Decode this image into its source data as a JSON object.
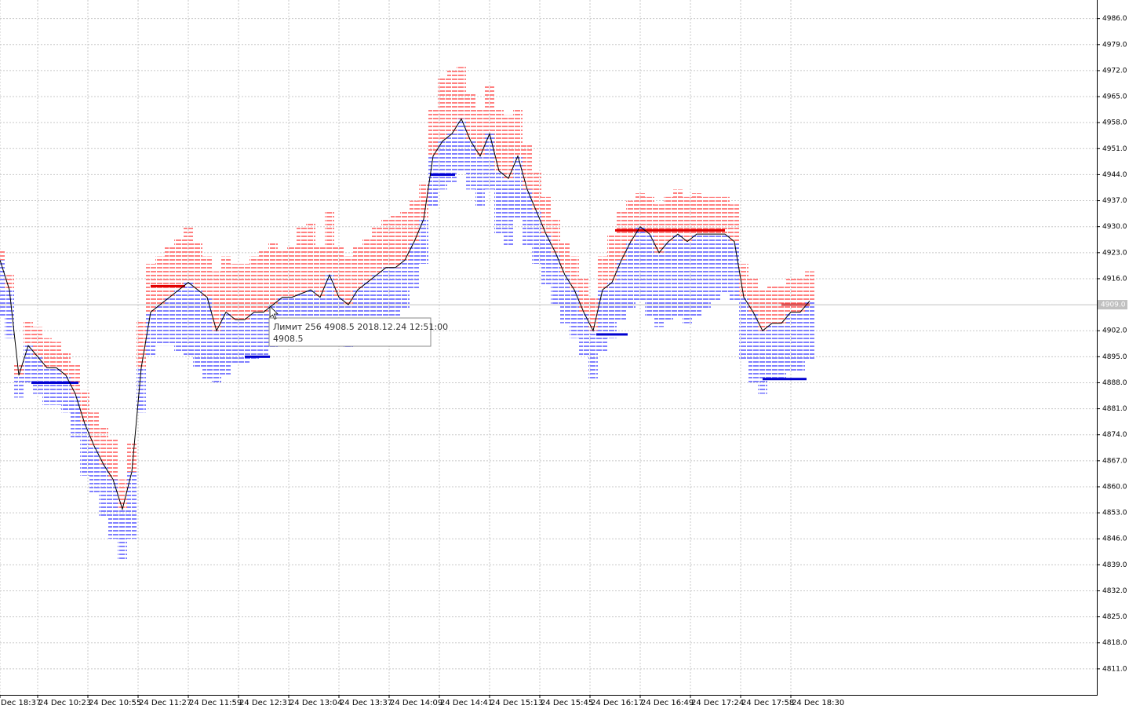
{
  "chart_data": {
    "type": "orderbook",
    "xlim": [
      0,
      349.5
    ],
    "ylim": [
      4804,
      4991
    ],
    "grid": true,
    "xticks": [
      {
        "value": 0,
        "label": "Dec 18:37"
      },
      {
        "value": 12,
        "label": "24 Dec 10:23"
      },
      {
        "value": 28,
        "label": "24 Dec 10:55"
      },
      {
        "value": 44,
        "label": "24 Dec 11:27"
      },
      {
        "value": 60,
        "label": "24 Dec 11:59"
      },
      {
        "value": 76,
        "label": "24 Dec 12:31"
      },
      {
        "value": 92,
        "label": "24 Dec 13:04"
      },
      {
        "value": 108,
        "label": "24 Dec 13:37"
      },
      {
        "value": 124,
        "label": "24 Dec 14:09"
      },
      {
        "value": 140,
        "label": "24 Dec 14:41"
      },
      {
        "value": 156,
        "label": "24 Dec 15:13"
      },
      {
        "value": 172,
        "label": "24 Dec 15:45"
      },
      {
        "value": 188,
        "label": "24 Dec 16:17"
      },
      {
        "value": 204,
        "label": "24 Dec 16:49"
      },
      {
        "value": 220,
        "label": "24 Dec 17:24"
      },
      {
        "value": 236,
        "label": "24 Dec 17:58"
      },
      {
        "value": 252,
        "label": "24 Dec 18:30"
      }
    ],
    "yticks": [
      {
        "value": 4986,
        "label": "4986.0"
      },
      {
        "value": 4979,
        "label": "4979.0"
      },
      {
        "value": 4972,
        "label": "4972.0"
      },
      {
        "value": 4965,
        "label": "4965.0"
      },
      {
        "value": 4958,
        "label": "4958.0"
      },
      {
        "value": 4951,
        "label": "4951.0"
      },
      {
        "value": 4944,
        "label": "4944.0"
      },
      {
        "value": 4937,
        "label": "4937.0"
      },
      {
        "value": 4930,
        "label": "4930.0"
      },
      {
        "value": 4923,
        "label": "4923.0"
      },
      {
        "value": 4916,
        "label": "4916.0"
      },
      {
        "value": 4902,
        "label": "4902.0"
      },
      {
        "value": 4895,
        "label": "4895.0"
      },
      {
        "value": 4888,
        "label": "4888.0"
      },
      {
        "value": 4881,
        "label": "4881.0"
      },
      {
        "value": 4874,
        "label": "4874.0"
      },
      {
        "value": 4867,
        "label": "4867.0"
      },
      {
        "value": 4860,
        "label": "4860.0"
      },
      {
        "value": 4853,
        "label": "4853.0"
      },
      {
        "value": 4846,
        "label": "4846.0"
      },
      {
        "value": 4839,
        "label": "4839.0"
      },
      {
        "value": 4832,
        "label": "4832.0"
      },
      {
        "value": 4825,
        "label": "4825.0"
      },
      {
        "value": 4818,
        "label": "4818.0"
      },
      {
        "value": 4811,
        "label": "4811.0"
      }
    ],
    "current_price": {
      "value": 4909,
      "label": "4909.0"
    },
    "x": [
      0,
      3,
      6,
      9,
      12,
      15,
      18,
      21,
      24,
      27,
      30,
      33,
      36,
      39,
      42,
      45,
      48,
      51,
      54,
      57,
      60,
      63,
      66,
      69,
      72,
      75,
      78,
      81,
      84,
      87,
      90,
      93,
      96,
      99,
      102,
      105,
      108,
      111,
      114,
      117,
      120,
      123,
      126,
      129,
      132,
      135,
      138,
      141,
      144,
      147,
      150,
      153,
      156,
      159,
      162,
      165,
      168,
      171,
      174,
      177,
      180,
      183,
      186,
      189,
      192,
      195,
      198,
      201,
      204,
      207,
      210,
      213,
      216,
      219,
      222,
      225,
      228,
      231,
      234,
      237,
      240,
      243,
      246,
      249,
      252,
      255,
      258
    ],
    "series": [
      {
        "color": "#000000",
        "values": [
          4921,
          4913,
          4890,
          4898,
          4895,
          4892,
          4892,
          4890,
          4885,
          4877,
          4871,
          4866,
          4862,
          4854,
          4864,
          4892,
          4907,
          4909,
          4911,
          4913,
          4915,
          4913,
          4911,
          4902,
          4907,
          4905,
          4905,
          4907,
          4907,
          4909,
          4911,
          4911,
          4912,
          4913,
          4911,
          4917,
          4911,
          4909,
          4913,
          4915,
          4917,
          4919,
          4919,
          4921,
          4926,
          4932,
          4949,
          4953,
          4955,
          4959,
          4953,
          4949,
          4955,
          4945,
          4943,
          4949,
          4940,
          4934,
          4928,
          4923,
          4917,
          4913,
          4907,
          4902,
          4913,
          4915,
          4921,
          4926,
          4930,
          4928,
          4923,
          4926,
          4928,
          4926,
          4928,
          4928,
          4928,
          4928,
          4926,
          4911,
          4907,
          4902,
          4904,
          4904,
          4907,
          4907,
          4910
        ]
      },
      {
        "color": "#ff8080",
        "values": [
          4924,
          4917,
          4893,
          4905,
          4903,
          4900,
          4899,
          4896,
          4893,
          4886,
          4880,
          4876,
          4873,
          4862,
          4872,
          4905,
          4920,
          4922,
          4925,
          4927,
          4930,
          4926,
          4922,
          4918,
          4922,
          4920,
          4920,
          4922,
          4924,
          4926,
          4924,
          4925,
          4930,
          4931,
          4925,
          4934,
          4925,
          4922,
          4925,
          4927,
          4930,
          4932,
          4933,
          4934,
          4937,
          4942,
          4962,
          4970,
          4972,
          4973,
          4966,
          4962,
          4968,
          4962,
          4960,
          4962,
          4952,
          4945,
          4938,
          4932,
          4926,
          4922,
          4916,
          4911,
          4922,
          4928,
          4934,
          4937,
          4939,
          4938,
          4936,
          4938,
          4940,
          4938,
          4939,
          4938,
          4938,
          4938,
          4936,
          4920,
          4916,
          4913,
          4914,
          4914,
          4916,
          4916,
          4918
        ]
      },
      {
        "color": "#8080ff",
        "values": [
          4906,
          4900,
          4884,
          4888,
          4885,
          4882,
          4882,
          4880,
          4873,
          4863,
          4858,
          4852,
          4846,
          4840,
          4846,
          4880,
          4895,
          4898,
          4898,
          4896,
          4895,
          4892,
          4889,
          4888,
          4890,
          4893,
          4893,
          4894,
          4895,
          4897,
          4900,
          4900,
          4900,
          4901,
          4899,
          4903,
          4899,
          4897,
          4900,
          4902,
          4904,
          4906,
          4906,
          4908,
          4913,
          4920,
          4935,
          4940,
          4942,
          4945,
          4940,
          4935,
          4940,
          4928,
          4925,
          4932,
          4925,
          4920,
          4914,
          4909,
          4904,
          4900,
          4895,
          4889,
          4896,
          4900,
          4905,
          4908,
          4910,
          4906,
          4903,
          4905,
          4906,
          4904,
          4906,
          4908,
          4910,
          4912,
          4910,
          4894,
          4888,
          4885,
          4889,
          4889,
          4891,
          4891,
          4894
        ]
      }
    ],
    "levels": [
      {
        "price": 4914,
        "x": [
          48,
          59
        ],
        "color": "#e00000"
      },
      {
        "price": 4929,
        "x": [
          196,
          231
        ],
        "color": "#e00000"
      },
      {
        "price": 4909,
        "x": [
          249,
          258
        ],
        "color": "#e00000"
      },
      {
        "price": 4888,
        "x": [
          10,
          25
        ],
        "color": "#0000d0"
      },
      {
        "price": 4895,
        "x": [
          78,
          86
        ],
        "color": "#0000d0"
      },
      {
        "price": 4944,
        "x": [
          137,
          145
        ],
        "color": "#0000d0"
      },
      {
        "price": 4901,
        "x": [
          190,
          200
        ],
        "color": "#0000d0"
      },
      {
        "price": 4889,
        "x": [
          243,
          257
        ],
        "color": "#0000d0"
      }
    ],
    "tooltip": {
      "lines": [
        "Лимит 256 4908.5 2018.12.24 12:51:00",
        "4908.5"
      ]
    }
  }
}
